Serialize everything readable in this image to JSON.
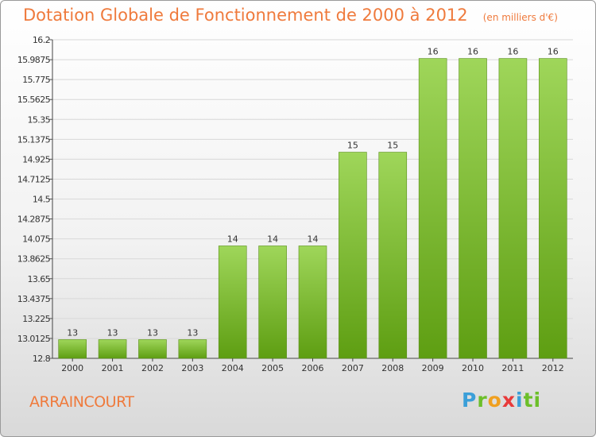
{
  "header": {
    "title": "Dotation Globale de Fonctionnement de 2000 à 2012",
    "unit": "(en milliers d'€)"
  },
  "commune": "ARRAINCOURT",
  "logo": {
    "text": "Proxiti"
  },
  "colors": {
    "title": "#ef7a3c",
    "bar_top": "#9fd65a",
    "bar_bottom": "#5e9e12",
    "grid": "#d8d8d8"
  },
  "chart_data": {
    "type": "bar",
    "categories": [
      "2000",
      "2001",
      "2002",
      "2003",
      "2004",
      "2005",
      "2006",
      "2007",
      "2008",
      "2009",
      "2010",
      "2011",
      "2012"
    ],
    "values": [
      13,
      13,
      13,
      13,
      14,
      14,
      14,
      15,
      15,
      16,
      16,
      16,
      16
    ],
    "data_labels": [
      "13",
      "13",
      "13",
      "13",
      "14",
      "14",
      "14",
      "15",
      "15",
      "16",
      "16",
      "16",
      "16"
    ],
    "plotted_values": [
      13.0,
      13.0,
      13.0,
      13.0,
      14.0,
      14.0,
      14.0,
      15.0,
      15.0,
      16.0,
      16.0,
      16.0,
      16.0
    ],
    "yticks": [
      12.8,
      13.0125,
      13.225,
      13.4375,
      13.65,
      13.8625,
      14.075,
      14.2875,
      14.5,
      14.7125,
      14.925,
      15.1375,
      15.35,
      15.5625,
      15.775,
      15.9875,
      16.2
    ],
    "ytick_labels": [
      "12.8",
      "13.0125",
      "13.225",
      "13.4375",
      "13.65",
      "13.8625",
      "14.075",
      "14.2875",
      "14.5",
      "14.7125",
      "14.925",
      "15.1375",
      "15.35",
      "15.5625",
      "15.775",
      "15.9875",
      "16.2"
    ],
    "ylim": [
      12.8,
      16.2
    ],
    "grid": true,
    "legend": "none"
  }
}
